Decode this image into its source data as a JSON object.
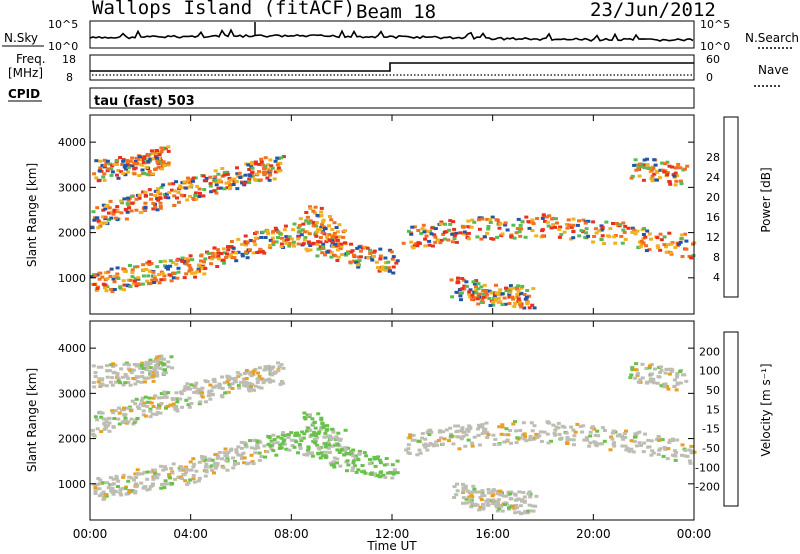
{
  "header": {
    "station": "Wallops Island (fitACF)",
    "beam": "Beam 18",
    "date": "23/Jun/2012"
  },
  "labels": {
    "nsky": "N.Sky",
    "nsearch": "N.Search",
    "freq_line1": "Freq.",
    "freq_line2": "[MHz]",
    "nave": "Nave",
    "cpid": "CPID",
    "cpid_value": "tau (fast) 503",
    "xaxis": "Time UT"
  },
  "noise_axis": {
    "left_top": "10^5",
    "left_bottom": "10^0",
    "right_top": "10^5",
    "right_bottom": "10^0"
  },
  "freq_axis": {
    "left_top": "18",
    "left_bottom": "8",
    "right_top": "60",
    "right_bottom": "0"
  },
  "chart_data": [
    {
      "type": "heatmap",
      "name": "power",
      "ylabel": "Slant Range [km]",
      "yticks": [
        "1000",
        "2000",
        "3000",
        "4000"
      ],
      "ylim": [
        200,
        4600
      ],
      "xticks": [
        "00:00",
        "04:00",
        "08:00",
        "12:00",
        "16:00",
        "20:00",
        "00:00"
      ],
      "xlim_hours": [
        0,
        24
      ],
      "colorbar_label": "Power [dB]",
      "colorbar_ticks": [
        "4",
        "8",
        "12",
        "16",
        "20",
        "24",
        "28"
      ],
      "colorbar_colors": [
        "#0000dd",
        "#2255aa",
        "#3a8c6a",
        "#55bb55",
        "#b8d23c",
        "#f0b020",
        "#f07020",
        "#e83020",
        "#dd0000"
      ]
    },
    {
      "type": "heatmap",
      "name": "velocity",
      "ylabel": "Slant Range [km]",
      "yticks": [
        "1000",
        "2000",
        "3000",
        "4000"
      ],
      "ylim": [
        200,
        4600
      ],
      "xticks": [
        "00:00",
        "04:00",
        "08:00",
        "12:00",
        "16:00",
        "20:00",
        "00:00"
      ],
      "xlim_hours": [
        0,
        24
      ],
      "colorbar_label": "Velocity [m s⁻¹]",
      "colorbar_ticks": [
        "200",
        "100",
        "50",
        "15",
        "-15",
        "-50",
        "-100",
        "-200"
      ],
      "colorbar_colors": [
        "#1f2bc0",
        "#2a5aa6",
        "#2f7c4e",
        "#68c24a",
        "#bdbdb4",
        "#e8a020",
        "#f07018",
        "#e83010",
        "#dd0000"
      ]
    }
  ]
}
